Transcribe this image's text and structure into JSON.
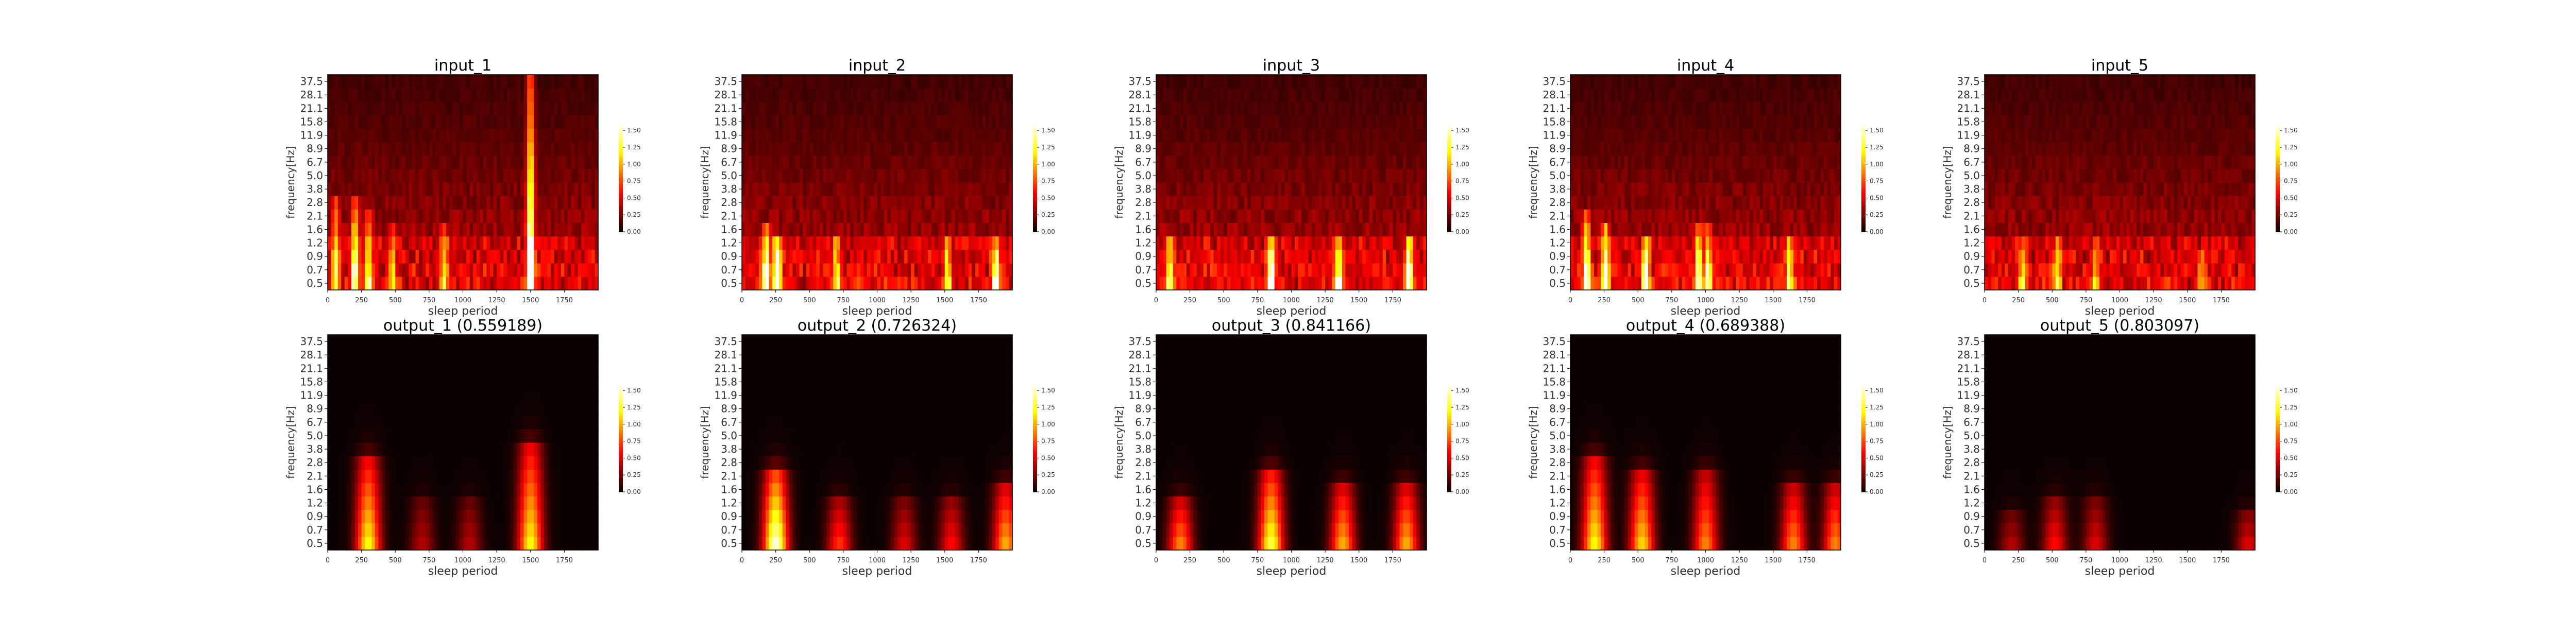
{
  "colors": {
    "cmap": "hot",
    "background": "#ffffff",
    "axis": "#000000"
  },
  "shared": {
    "ylabel": "frequency[Hz]",
    "xlabel": "sleep period",
    "yticks": [
      "37.5",
      "28.1",
      "21.1",
      "15.8",
      "11.9",
      "8.9",
      "6.7",
      "5.0",
      "3.8",
      "2.8",
      "2.1",
      "1.6",
      "1.2",
      "0.9",
      "0.7",
      "0.5"
    ],
    "xticks": [
      "0",
      "250",
      "500",
      "750",
      "1000",
      "1250",
      "1500",
      "1750"
    ],
    "xtick_values": [
      0,
      250,
      500,
      750,
      1000,
      1250,
      1500,
      1750
    ],
    "xlim": [
      0,
      2000
    ],
    "colorbar_ticks": [
      "0.00",
      "0.25",
      "0.50",
      "0.75",
      "1.00",
      "1.25",
      "1.50"
    ],
    "colorbar_values": [
      0,
      0.25,
      0.5,
      0.75,
      1.0,
      1.25,
      1.5
    ],
    "vmin": 0,
    "vmax": 1.6
  },
  "chart_data": [
    {
      "type": "heatmap",
      "title": "input_1",
      "xlabel": "sleep period",
      "ylabel": "frequency[Hz]",
      "grid": false,
      "colormap": "hot",
      "peaks": [
        {
          "x": 60,
          "bins": [
            0,
            6
          ],
          "value": 0.9
        },
        {
          "x": 200,
          "bins": [
            0,
            6
          ],
          "value": 1.1
        },
        {
          "x": 300,
          "bins": [
            0,
            5
          ],
          "value": 1.0
        },
        {
          "x": 480,
          "bins": [
            0,
            4
          ],
          "value": 0.7
        },
        {
          "x": 860,
          "bins": [
            0,
            4
          ],
          "value": 0.7
        },
        {
          "x": 1500,
          "bins": [
            0,
            15
          ],
          "value": 1.55
        }
      ]
    },
    {
      "type": "heatmap",
      "title": "input_2",
      "xlabel": "sleep period",
      "ylabel": "frequency[Hz]",
      "grid": false,
      "colormap": "hot",
      "peaks": [
        {
          "x": 180,
          "bins": [
            0,
            4
          ],
          "value": 1.3
        },
        {
          "x": 260,
          "bins": [
            0,
            3
          ],
          "value": 1.4
        },
        {
          "x": 700,
          "bins": [
            0,
            3
          ],
          "value": 0.8
        },
        {
          "x": 1520,
          "bins": [
            0,
            3
          ],
          "value": 0.9
        },
        {
          "x": 1880,
          "bins": [
            0,
            3
          ],
          "value": 1.2
        }
      ]
    },
    {
      "type": "heatmap",
      "title": "input_3",
      "xlabel": "sleep period",
      "ylabel": "frequency[Hz]",
      "grid": false,
      "colormap": "hot",
      "peaks": [
        {
          "x": 100,
          "bins": [
            0,
            3
          ],
          "value": 1.1
        },
        {
          "x": 850,
          "bins": [
            0,
            3
          ],
          "value": 1.4
        },
        {
          "x": 1350,
          "bins": [
            0,
            3
          ],
          "value": 1.2
        },
        {
          "x": 1870,
          "bins": [
            0,
            3
          ],
          "value": 1.3
        }
      ]
    },
    {
      "type": "heatmap",
      "title": "input_4",
      "xlabel": "sleep period",
      "ylabel": "frequency[Hz]",
      "grid": false,
      "colormap": "hot",
      "peaks": [
        {
          "x": 120,
          "bins": [
            0,
            5
          ],
          "value": 1.2
        },
        {
          "x": 260,
          "bins": [
            0,
            4
          ],
          "value": 1.3
        },
        {
          "x": 560,
          "bins": [
            0,
            3
          ],
          "value": 1.2
        },
        {
          "x": 950,
          "bins": [
            0,
            4
          ],
          "value": 1.1
        },
        {
          "x": 1020,
          "bins": [
            0,
            4
          ],
          "value": 1.0
        },
        {
          "x": 1620,
          "bins": [
            0,
            3
          ],
          "value": 1.0
        }
      ]
    },
    {
      "type": "heatmap",
      "title": "input_5",
      "xlabel": "sleep period",
      "ylabel": "frequency[Hz]",
      "grid": false,
      "colormap": "hot",
      "peaks": [
        {
          "x": 280,
          "bins": [
            0,
            3
          ],
          "value": 0.7
        },
        {
          "x": 540,
          "bins": [
            0,
            3
          ],
          "value": 0.8
        },
        {
          "x": 820,
          "bins": [
            0,
            3
          ],
          "value": 0.7
        },
        {
          "x": 1600,
          "bins": [
            0,
            2
          ],
          "value": 0.6
        }
      ]
    },
    {
      "type": "heatmap",
      "title": "output_1 (0.559189)",
      "xlabel": "sleep period",
      "ylabel": "frequency[Hz]",
      "grid": false,
      "colormap": "hot",
      "peaks": [
        {
          "x": 300,
          "bins": [
            0,
            6
          ],
          "value": 1.2
        },
        {
          "x": 1500,
          "bins": [
            0,
            7
          ],
          "value": 1.2
        },
        {
          "x": 700,
          "bins": [
            0,
            3
          ],
          "value": 0.4
        },
        {
          "x": 1050,
          "bins": [
            0,
            3
          ],
          "value": 0.4
        }
      ]
    },
    {
      "type": "heatmap",
      "title": "output_2 (0.726324)",
      "xlabel": "sleep period",
      "ylabel": "frequency[Hz]",
      "grid": false,
      "colormap": "hot",
      "peaks": [
        {
          "x": 250,
          "bins": [
            0,
            5
          ],
          "value": 1.55
        },
        {
          "x": 720,
          "bins": [
            0,
            3
          ],
          "value": 0.7
        },
        {
          "x": 1200,
          "bins": [
            0,
            3
          ],
          "value": 0.5
        },
        {
          "x": 1550,
          "bins": [
            0,
            3
          ],
          "value": 0.6
        },
        {
          "x": 1950,
          "bins": [
            0,
            4
          ],
          "value": 1.0
        }
      ]
    },
    {
      "type": "heatmap",
      "title": "output_3 (0.841166)",
      "xlabel": "sleep period",
      "ylabel": "frequency[Hz]",
      "grid": false,
      "colormap": "hot",
      "peaks": [
        {
          "x": 180,
          "bins": [
            0,
            3
          ],
          "value": 0.9
        },
        {
          "x": 850,
          "bins": [
            0,
            5
          ],
          "value": 1.3
        },
        {
          "x": 1380,
          "bins": [
            0,
            4
          ],
          "value": 1.0
        },
        {
          "x": 1850,
          "bins": [
            0,
            4
          ],
          "value": 1.0
        }
      ]
    },
    {
      "type": "heatmap",
      "title": "output_4 (0.689388)",
      "xlabel": "sleep period",
      "ylabel": "frequency[Hz]",
      "grid": false,
      "colormap": "hot",
      "peaks": [
        {
          "x": 180,
          "bins": [
            0,
            6
          ],
          "value": 1.2
        },
        {
          "x": 530,
          "bins": [
            0,
            5
          ],
          "value": 1.1
        },
        {
          "x": 1000,
          "bins": [
            0,
            5
          ],
          "value": 0.9
        },
        {
          "x": 1650,
          "bins": [
            0,
            4
          ],
          "value": 0.9
        },
        {
          "x": 1960,
          "bins": [
            0,
            4
          ],
          "value": 0.9
        }
      ]
    },
    {
      "type": "heatmap",
      "title": "output_5 (0.803097)",
      "xlabel": "sleep period",
      "ylabel": "frequency[Hz]",
      "grid": false,
      "colormap": "hot",
      "peaks": [
        {
          "x": 200,
          "bins": [
            0,
            2
          ],
          "value": 0.4
        },
        {
          "x": 520,
          "bins": [
            0,
            3
          ],
          "value": 0.6
        },
        {
          "x": 820,
          "bins": [
            0,
            3
          ],
          "value": 0.5
        },
        {
          "x": 1950,
          "bins": [
            0,
            2
          ],
          "value": 0.5
        }
      ]
    }
  ]
}
